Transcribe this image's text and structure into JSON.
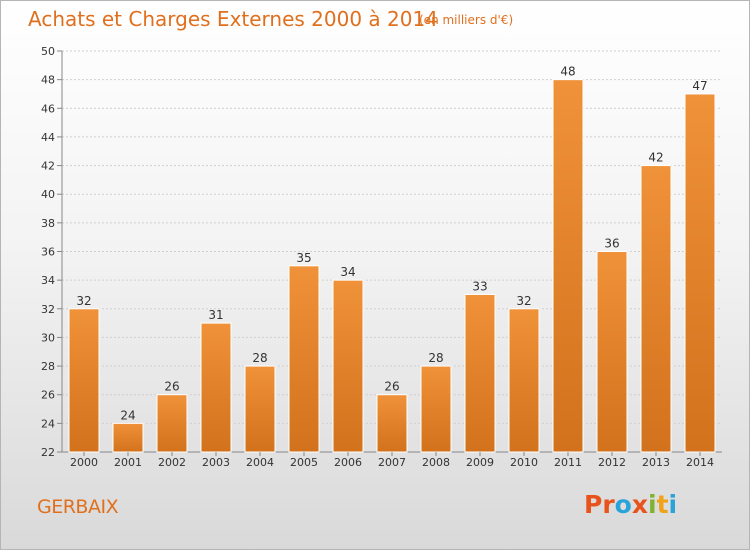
{
  "chart_data": {
    "type": "bar",
    "title": "Achats et Charges Externes 2000 à 2014",
    "subtitle": "(en milliers d'€)",
    "categories": [
      "2000",
      "2001",
      "2002",
      "2003",
      "2004",
      "2005",
      "2006",
      "2007",
      "2008",
      "2009",
      "2010",
      "2011",
      "2012",
      "2013",
      "2014"
    ],
    "values": [
      32,
      24,
      26,
      31,
      28,
      35,
      34,
      26,
      28,
      33,
      32,
      48,
      36,
      42,
      47
    ],
    "ylim": [
      22,
      50
    ],
    "yticks": [
      22,
      24,
      26,
      28,
      30,
      32,
      34,
      36,
      38,
      40,
      42,
      44,
      46,
      48,
      50
    ],
    "grid": true,
    "bar_color": "#f0923a",
    "bar_color_dark": "#d2721c"
  },
  "footer": {
    "place": "GERBAIX",
    "brand": "Proxiti",
    "brand_colors": [
      "#e8531c",
      "#e8531c",
      "#2aa3d8",
      "#e8531c",
      "#7fb331",
      "#f0a21b",
      "#2aa3d8"
    ]
  }
}
